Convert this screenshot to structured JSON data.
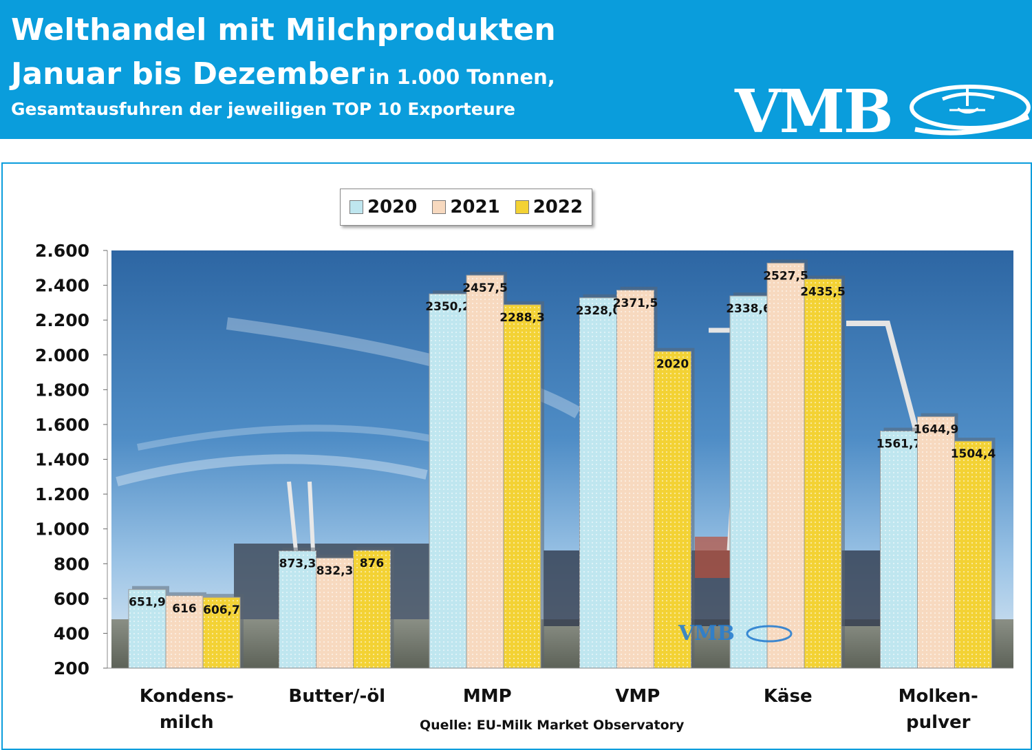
{
  "header": {
    "title": "Welthandel mit Milchprodukten",
    "line2_main": "Januar bis Dezember",
    "line2_unit": "in 1.000 Tonnen,",
    "subtitle": "Gesamtausfuhren der jeweiligen TOP 10 Exporteure",
    "logo": "VMB"
  },
  "colors": {
    "header_bg": "#0a9ddc",
    "series_2020": "#bfe6ef",
    "series_2021": "#f7d9bf",
    "series_2022": "#f3d234"
  },
  "source": "Quelle: EU-Milk Market Observatory",
  "watermark": "VMB",
  "chart_data": {
    "type": "bar",
    "title": "Welthandel mit Milchprodukten",
    "categories": [
      [
        "Kondens-",
        "milch"
      ],
      [
        "Butter/-öl"
      ],
      [
        "MMP"
      ],
      [
        "VMP"
      ],
      [
        "Käse"
      ],
      [
        "Molken-",
        "pulver"
      ]
    ],
    "series": [
      {
        "name": "2020",
        "values": [
          651.9,
          873.3,
          2350.2,
          2328.0,
          2338.6,
          1561.7
        ],
        "labels": [
          "651,9",
          "873,3",
          "2350,2",
          "2328,0",
          "2338,6",
          "1561,7"
        ]
      },
      {
        "name": "2021",
        "values": [
          616,
          832.3,
          2457.5,
          2371.5,
          2527.5,
          1644.9
        ],
        "labels": [
          "616",
          "832,3",
          "2457,5",
          "2371,5",
          "2527,5",
          "1644,9"
        ]
      },
      {
        "name": "2022",
        "values": [
          606.7,
          876,
          2288.3,
          2020,
          2435.5,
          1504.4
        ],
        "labels": [
          "606,7",
          "876",
          "2288,3",
          "2020",
          "2435,5",
          "1504,4"
        ]
      }
    ],
    "ylim": [
      200,
      2600
    ],
    "yticks": [
      "2.600",
      "2.400",
      "2.200",
      "2.000",
      "1.800",
      "1.600",
      "1.400",
      "1.200",
      "1.000",
      "800",
      "600",
      "400",
      "200"
    ],
    "ytick_values": [
      2600,
      2400,
      2200,
      2000,
      1800,
      1600,
      1400,
      1200,
      1000,
      800,
      600,
      400,
      200
    ],
    "legend_position": "top-center",
    "grid": false
  }
}
